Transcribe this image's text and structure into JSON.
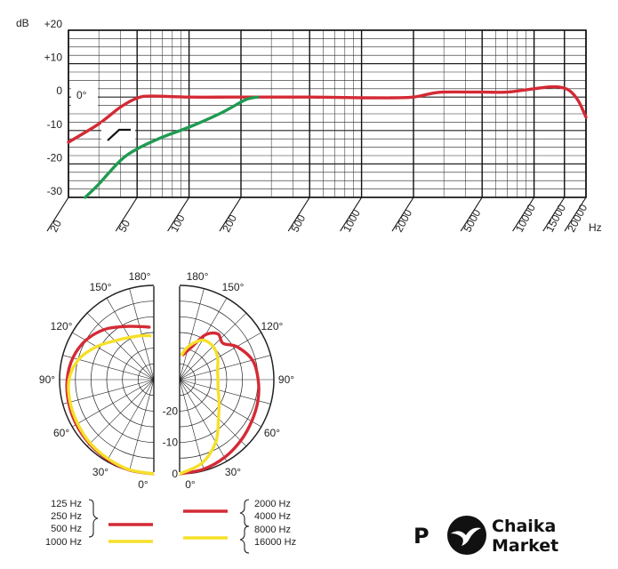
{
  "chart_data": [
    {
      "type": "line",
      "title": "",
      "xscale": "log",
      "xlim": [
        20,
        20000
      ],
      "ylim": [
        -30,
        20
      ],
      "x_unit": "Hz",
      "y_unit": "dB",
      "y_tick_labels": [
        "+20",
        "+10",
        "0",
        "-10",
        "-20",
        "-30"
      ],
      "y_tick_values": [
        20,
        10,
        0,
        -10,
        -20,
        -30
      ],
      "x_tick_labels": [
        "20",
        "50",
        "100",
        "200",
        "500",
        "1000",
        "2000",
        "5000",
        "10000",
        "15000",
        "20000"
      ],
      "x_tick_values": [
        20,
        50,
        100,
        200,
        500,
        1000,
        2000,
        5000,
        10000,
        15000,
        20000
      ],
      "annotation_angle": "0°",
      "grid": true,
      "series": [
        {
          "color": "#d42a35",
          "points": [
            [
              20,
              -13.5
            ],
            [
              30,
              -8
            ],
            [
              40,
              -3
            ],
            [
              50,
              -0.3
            ],
            [
              60,
              0.3
            ],
            [
              100,
              0
            ],
            [
              200,
              0
            ],
            [
              500,
              0
            ],
            [
              1000,
              -0.2
            ],
            [
              1500,
              -0.2
            ],
            [
              2000,
              0
            ],
            [
              2500,
              1
            ],
            [
              3000,
              1.5
            ],
            [
              5000,
              1.5
            ],
            [
              7000,
              1.5
            ],
            [
              10000,
              2.5
            ],
            [
              12000,
              3
            ],
            [
              14000,
              3
            ],
            [
              16000,
              2
            ],
            [
              18000,
              -1
            ],
            [
              20000,
              -6
            ]
          ]
        },
        {
          "color": "#1f9a52",
          "points": [
            [
              25,
              -30
            ],
            [
              30,
              -26
            ],
            [
              40,
              -19
            ],
            [
              50,
              -15.5
            ],
            [
              70,
              -12
            ],
            [
              100,
              -9
            ],
            [
              150,
              -5
            ],
            [
              200,
              -1.5
            ],
            [
              220,
              -0.5
            ],
            [
              250,
              0
            ]
          ]
        }
      ]
    },
    {
      "type": "polar",
      "angle_labels": [
        "180°",
        "150°",
        "120°",
        "90°",
        "60°",
        "30°",
        "0°"
      ],
      "angle_values": [
        180,
        150,
        120,
        90,
        60,
        30,
        0
      ],
      "right_angle_labels": [
        "180°",
        "150°",
        "120°",
        "90°",
        "60°",
        "30°",
        "0°"
      ],
      "db_labels": [
        "-20",
        "-10",
        "0"
      ],
      "db_values": [
        -20,
        -10,
        0
      ],
      "rlim": [
        -30,
        0
      ],
      "left_half": {
        "series": [
          {
            "color": "#d42a35",
            "points": [
              [
                0,
                0
              ],
              [
                15,
                -0.2
              ],
              [
                30,
                -0.6
              ],
              [
                45,
                -1.1
              ],
              [
                60,
                -1.5
              ],
              [
                75,
                -1.9
              ],
              [
                90,
                -2.4
              ],
              [
                105,
                -3.3
              ],
              [
                120,
                -5
              ],
              [
                135,
                -7.5
              ],
              [
                150,
                -10.5
              ],
              [
                165,
                -12.5
              ],
              [
                175,
                -13.2
              ]
            ]
          },
          {
            "color": "#f6e028",
            "points": [
              [
                0,
                0
              ],
              [
                15,
                -0.3
              ],
              [
                30,
                -0.9
              ],
              [
                45,
                -1.4
              ],
              [
                60,
                -2
              ],
              [
                75,
                -2.4
              ],
              [
                90,
                -3
              ],
              [
                105,
                -5.2
              ],
              [
                120,
                -9
              ],
              [
                135,
                -12.5
              ],
              [
                150,
                -14.5
              ],
              [
                165,
                -15.5
              ],
              [
                175,
                -16
              ]
            ]
          }
        ]
      },
      "right_half": {
        "series": [
          {
            "color": "#d42a35",
            "points": [
              [
                0,
                0
              ],
              [
                15,
                -0.5
              ],
              [
                30,
                -1.4
              ],
              [
                45,
                -2.5
              ],
              [
                60,
                -3.5
              ],
              [
                75,
                -4.2
              ],
              [
                90,
                -5
              ],
              [
                105,
                -6
              ],
              [
                120,
                -9
              ],
              [
                130,
                -12
              ],
              [
                140,
                -11
              ],
              [
                150,
                -13.5
              ],
              [
                160,
                -19
              ],
              [
                172,
                -22
              ]
            ]
          },
          {
            "color": "#f6e028",
            "points": [
              [
                0,
                0
              ],
              [
                15,
                -2.5
              ],
              [
                30,
                -7
              ],
              [
                45,
                -12.5
              ],
              [
                60,
                -15.5
              ],
              [
                75,
                -17.3
              ],
              [
                90,
                -17.8
              ],
              [
                105,
                -17.5
              ],
              [
                120,
                -16
              ],
              [
                135,
                -15
              ],
              [
                150,
                -15.5
              ],
              [
                165,
                -19
              ],
              [
                175,
                -22
              ]
            ]
          }
        ]
      },
      "legend": {
        "left_group": [
          "125 Hz",
          "250 Hz",
          "500 Hz",
          "1000 Hz"
        ],
        "right_group": [
          "2000 Hz",
          "4000 Hz",
          "8000 Hz",
          "16000 Hz"
        ]
      }
    }
  ],
  "watermark": {
    "letter": "P",
    "brand_line1": "Chaika",
    "brand_line2": "Market"
  }
}
